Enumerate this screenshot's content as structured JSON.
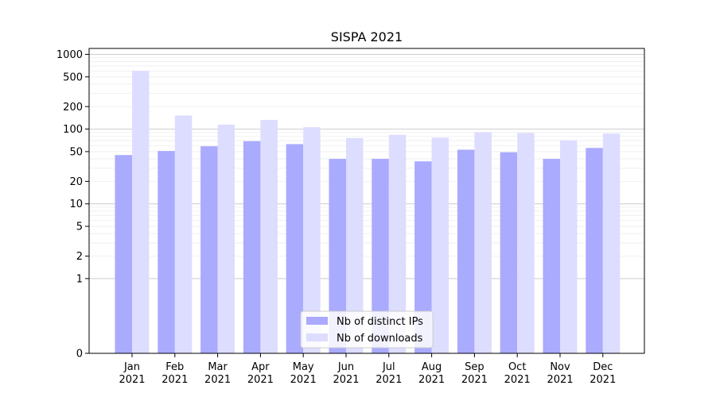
{
  "chart_data": {
    "type": "bar",
    "title": "SISPA 2021",
    "xlabel": "",
    "ylabel": "",
    "yscale": "symlog",
    "ylim": [
      0,
      1200
    ],
    "yticks": [
      0,
      1,
      2,
      5,
      10,
      20,
      50,
      100,
      200,
      500,
      1000
    ],
    "grid": "horizontal",
    "legend_position": "lower-center",
    "categories": [
      "Jan\n2021",
      "Feb\n2021",
      "Mar\n2021",
      "Apr\n2021",
      "May\n2021",
      "Jun\n2021",
      "Jul\n2021",
      "Aug\n2021",
      "Sep\n2021",
      "Oct\n2021",
      "Nov\n2021",
      "Dec\n2021"
    ],
    "series": [
      {
        "name": "Nb of distinct IPs",
        "color": "#aaaaff",
        "values": [
          45,
          51,
          59,
          69,
          63,
          40,
          40,
          37,
          53,
          49,
          40,
          56
        ]
      },
      {
        "name": "Nb of downloads",
        "color": "#ddddff",
        "values": [
          603,
          152,
          115,
          133,
          106,
          76,
          84,
          77,
          91,
          89,
          71,
          87
        ]
      }
    ]
  }
}
